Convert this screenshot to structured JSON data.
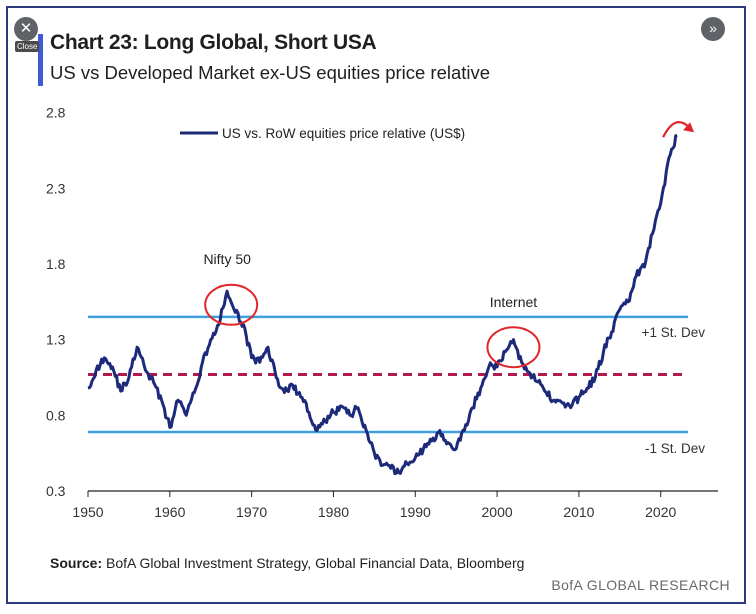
{
  "controls": {
    "close_glyph": "✕",
    "close_label": "Close",
    "next_glyph": "»"
  },
  "chart_data": {
    "type": "line",
    "title": "Chart 23: Long Global, Short USA",
    "subtitle": "US vs Developed Market ex-US equities price relative",
    "xlim": [
      1950,
      2027
    ],
    "ylim": [
      0.3,
      2.85
    ],
    "x_ticks": [
      1950,
      1960,
      1970,
      1980,
      1990,
      2000,
      2010,
      2020
    ],
    "y_ticks": [
      0.3,
      0.8,
      1.3,
      1.8,
      2.3,
      2.8
    ],
    "legend": "top-left",
    "series": [
      {
        "name": "US vs. RoW equities price relative (US$)",
        "color": "#1d2a7a",
        "x": [
          1950,
          1951,
          1952,
          1953,
          1954,
          1955,
          1956,
          1957,
          1958,
          1959,
          1960,
          1961,
          1962,
          1963,
          1964,
          1965,
          1966,
          1967,
          1968,
          1969,
          1970,
          1971,
          1972,
          1973,
          1974,
          1975,
          1976,
          1977,
          1978,
          1979,
          1980,
          1981,
          1982,
          1983,
          1984,
          1985,
          1986,
          1987,
          1988,
          1989,
          1990,
          1991,
          1992,
          1993,
          1994,
          1995,
          1996,
          1997,
          1998,
          1999,
          2000,
          2001,
          2002,
          2003,
          2004,
          2005,
          2006,
          2007,
          2008,
          2009,
          2010,
          2011,
          2012,
          2013,
          2014,
          2015,
          2016,
          2017,
          2018,
          2019,
          2020,
          2021,
          2022
        ],
        "y": [
          0.98,
          1.1,
          1.18,
          1.12,
          0.96,
          1.05,
          1.25,
          1.1,
          1.02,
          0.9,
          0.72,
          0.9,
          0.8,
          0.95,
          1.15,
          1.3,
          1.4,
          1.62,
          1.48,
          1.4,
          1.18,
          1.15,
          1.25,
          1.05,
          0.95,
          1.0,
          0.92,
          0.82,
          0.7,
          0.76,
          0.82,
          0.86,
          0.8,
          0.85,
          0.7,
          0.55,
          0.47,
          0.45,
          0.42,
          0.48,
          0.52,
          0.58,
          0.63,
          0.7,
          0.62,
          0.58,
          0.7,
          0.85,
          0.98,
          1.12,
          1.12,
          1.22,
          1.3,
          1.15,
          1.08,
          1.02,
          0.95,
          0.9,
          0.88,
          0.85,
          0.92,
          0.98,
          1.05,
          1.22,
          1.35,
          1.5,
          1.55,
          1.72,
          1.78,
          2.0,
          2.2,
          2.5,
          2.65
        ]
      }
    ],
    "reference_lines": [
      {
        "label": "+1 St. Dev",
        "value": 1.45,
        "color": "#3f9fe0",
        "style": "solid"
      },
      {
        "label": "",
        "value": 1.07,
        "color": "#b01a4e",
        "style": "dashed"
      },
      {
        "label": "-1 St. Dev",
        "value": 0.69,
        "color": "#3f9fe0",
        "style": "solid"
      }
    ],
    "annotations": [
      {
        "label": "Nifty 50",
        "x": 1967.5,
        "y": 1.53
      },
      {
        "label": "Internet",
        "x": 2002,
        "y": 1.25
      }
    ],
    "highlight_color": "#e0262b"
  },
  "footer": {
    "source_label": "Source:",
    "source_text": " BofA Global Investment Strategy, Global Financial Data, Bloomberg",
    "brand": "BofA GLOBAL RESEARCH"
  }
}
